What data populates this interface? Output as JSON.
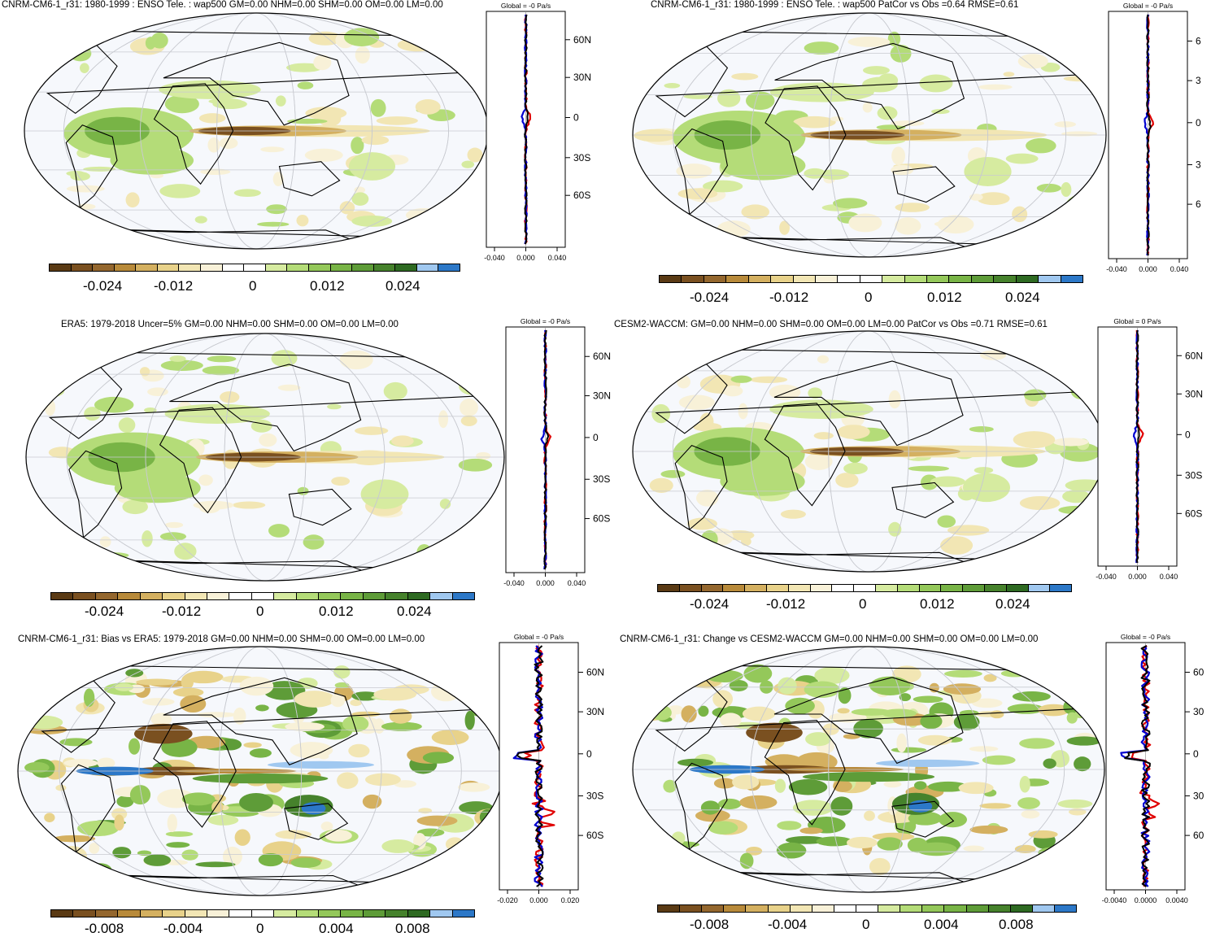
{
  "panels": [
    {
      "id": "p1",
      "title": "CNRM-CM6-1_r31: 1980-1999 : ENSO Tele. : wap500 GM=0.00 NHM=0.00 SHM=0.00 OM=0.00 LM=0.00",
      "global_label": "Global = -0 Pa/s",
      "lat_labels": [
        "60N",
        "30N",
        "0",
        "30S",
        "60S"
      ],
      "x_ticks": [
        "-0.040",
        "0.000",
        "0.040"
      ],
      "colorbar_labels": [
        "-0.024",
        "-0.012",
        "0",
        "0.012",
        "0.024"
      ]
    },
    {
      "id": "p2",
      "title": "CNRM-CM6-1_r31: 1980-1999 : ENSO Tele. : wap500 PatCor vs Obs =0.64 RMSE=0.61",
      "global_label": "Global = -0 Pa/s",
      "lat_labels": [
        "6",
        "3",
        "0",
        "3",
        "6"
      ],
      "x_ticks": [
        "-0.040",
        "0.000",
        "0.040"
      ],
      "colorbar_labels": [
        "-0.024",
        "-0.012",
        "0",
        "0.012",
        "0.024"
      ]
    },
    {
      "id": "p3",
      "title": "ERA5: 1979-2018 Uncer=5% GM=0.00 NHM=0.00 SHM=0.00 OM=0.00 LM=0.00",
      "global_label": "Global = -0 Pa/s",
      "lat_labels": [
        "60N",
        "30N",
        "0",
        "30S",
        "60S"
      ],
      "x_ticks": [
        "-0.040",
        "0.000",
        "0.040"
      ],
      "colorbar_labels": [
        "-0.024",
        "-0.012",
        "0",
        "0.012",
        "0.024"
      ]
    },
    {
      "id": "p4",
      "title": "CESM2-WACCM: GM=0.00 NHM=0.00 SHM=0.00 OM=0.00 LM=0.00 PatCor vs Obs =0.71 RMSE=0.61",
      "global_label": "Global = 0 Pa/s",
      "lat_labels": [
        "60N",
        "30N",
        "0",
        "30S",
        "60S"
      ],
      "x_ticks": [
        "-0.040",
        "0.000",
        "0.040"
      ],
      "colorbar_labels": [
        "-0.024",
        "-0.012",
        "0",
        "0.012",
        "0.024"
      ]
    },
    {
      "id": "p5",
      "title": "CNRM-CM6-1_r31: Bias vs ERA5: 1979-2018 GM=0.00 NHM=0.00 SHM=0.00 OM=0.00 LM=0.00",
      "global_label": "Global = -0 Pa/s",
      "lat_labels": [
        "60N",
        "30N",
        "0",
        "30S",
        "60S"
      ],
      "x_ticks": [
        "-0.020",
        "0.000",
        "0.020"
      ],
      "colorbar_labels": [
        "-0.008",
        "-0.004",
        "0",
        "0.004",
        "0.008"
      ]
    },
    {
      "id": "p6",
      "title": "CNRM-CM6-1_r31: Change vs CESM2-WACCM GM=0.00 NHM=0.00 SHM=0.00 OM=0.00 LM=0.00",
      "global_label": "Global = -0 Pa/s",
      "lat_labels": [
        "60",
        "30",
        "0",
        "30",
        "60"
      ],
      "x_ticks": [
        "-0.0040",
        "0.0000",
        "0.0040"
      ],
      "colorbar_labels": [
        "-0.008",
        "-0.004",
        "0",
        "0.004",
        "0.008"
      ]
    }
  ],
  "colors": {
    "palette": [
      "#5a3a14",
      "#7a5020",
      "#94672e",
      "#b88a3a",
      "#d4b060",
      "#e8d28a",
      "#f2e6b4",
      "#f8f1d8",
      "#ffffff",
      "#ffffff",
      "#d6eba0",
      "#b4dc78",
      "#94c85a",
      "#78b446",
      "#5e9c38",
      "#46822c",
      "#2e6a22",
      "#a0c8f0",
      "#2c78c8"
    ],
    "ocean_bg": "#f6f8fc",
    "zonal_red": "#e00000",
    "zonal_blue": "#0000d0",
    "zonal_black": "#000000"
  }
}
